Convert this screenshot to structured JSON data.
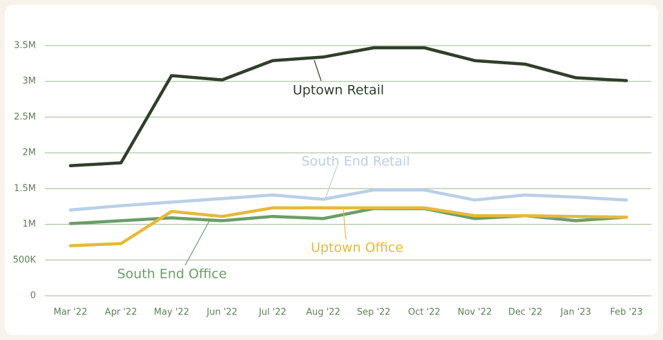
{
  "chart_data": {
    "type": "line",
    "categories": [
      "Mar '22",
      "Apr '22",
      "May '22",
      "Jun '22",
      "Jul '22",
      "Aug '22",
      "Sep '22",
      "Oct '22",
      "Nov '22",
      "Dec '22",
      "Jan '23",
      "Feb '23"
    ],
    "series": [
      {
        "name": "South End Retail",
        "color": "#b9cfe6",
        "values": [
          1200000,
          1260000,
          1310000,
          1360000,
          1410000,
          1350000,
          1480000,
          1480000,
          1340000,
          1410000,
          1380000,
          1340000
        ]
      },
      {
        "name": "South End Office",
        "color": "#6a9e68",
        "values": [
          1010000,
          1050000,
          1090000,
          1050000,
          1110000,
          1080000,
          1220000,
          1220000,
          1080000,
          1120000,
          1050000,
          1100000
        ]
      },
      {
        "name": "Uptown Office",
        "color": "#e8b83a",
        "values": [
          700000,
          730000,
          1180000,
          1110000,
          1230000,
          1230000,
          1230000,
          1230000,
          1120000,
          1120000,
          1110000,
          1100000
        ]
      },
      {
        "name": "Uptown Retail",
        "color": "#2f3f2a",
        "values": [
          1820000,
          1860000,
          3080000,
          3020000,
          3290000,
          3340000,
          3470000,
          3470000,
          3290000,
          3240000,
          3050000,
          3010000
        ]
      }
    ],
    "ylim": [
      0,
      3500000
    ],
    "yticks": [
      0,
      {
        "value": 500000,
        "label": "500K"
      },
      {
        "value": 1000000,
        "label": "1M"
      },
      {
        "value": 1500000,
        "label": "1.5M"
      },
      {
        "value": 2000000,
        "label": "2M"
      },
      {
        "value": 2500000,
        "label": "2.5M"
      },
      {
        "value": 3000000,
        "label": "3M"
      },
      {
        "value": 3500000,
        "label": "3.5M"
      }
    ],
    "grid": true
  }
}
